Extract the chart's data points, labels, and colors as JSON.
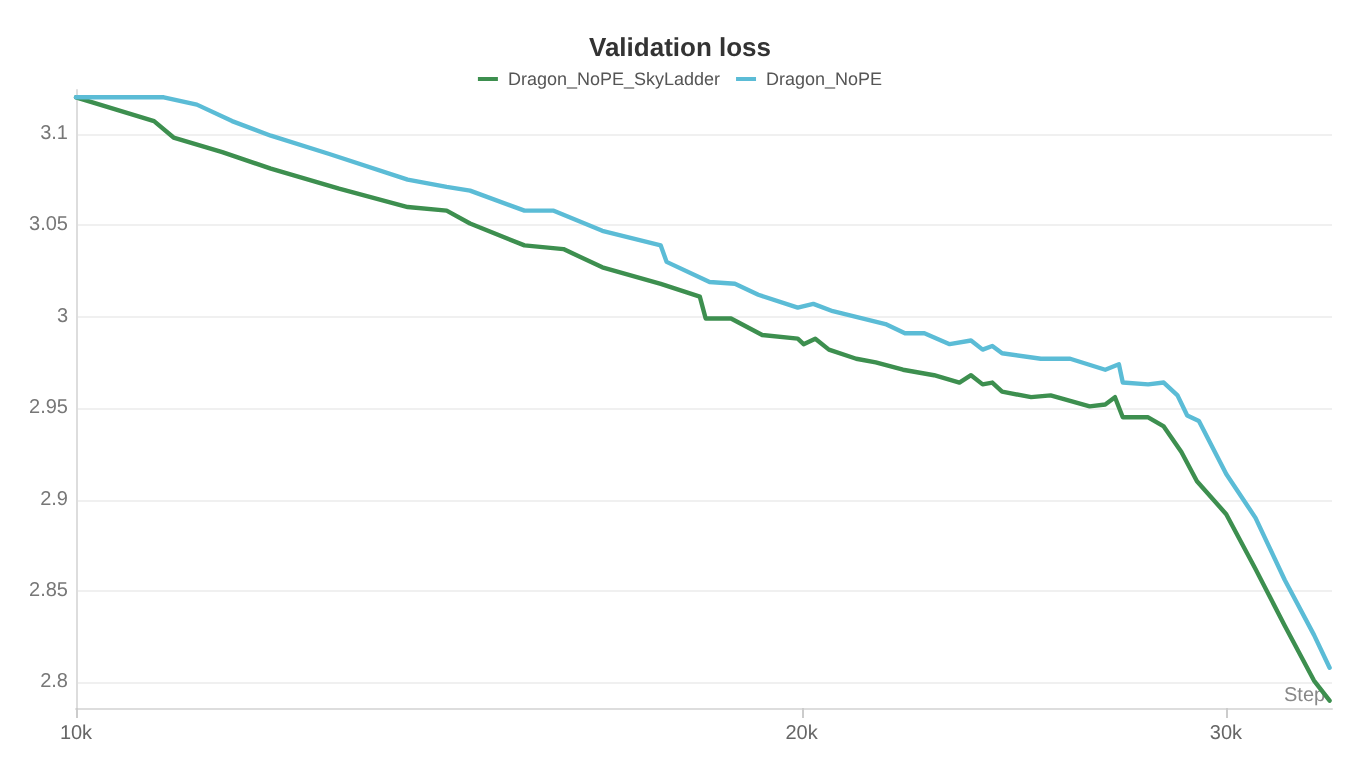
{
  "chart_data": {
    "type": "line",
    "title": "Validation loss",
    "xlabel": "Step",
    "log": "x",
    "grid": "y",
    "legend": "top",
    "line_style": "solid",
    "marker": "none",
    "xlim": [
      10000,
      33200
    ],
    "xticks": [
      {
        "value": 10000,
        "label": "10k"
      },
      {
        "value": 20000,
        "label": "20k"
      },
      {
        "value": 30000,
        "label": "30k"
      }
    ],
    "ylim": [
      2.786,
      3.124
    ],
    "yticks": [
      2.8,
      2.85,
      2.9,
      2.95,
      3,
      3.05,
      3.1
    ],
    "series": [
      {
        "name": "Dragon_NoPE_SkyLadder",
        "color": "#3d8f4f",
        "x": [
          10000,
          10774,
          10977,
          11500,
          12046,
          12857,
          13728,
          14249,
          14571,
          15349,
          15931,
          16534,
          17483,
          18148,
          18250,
          18697,
          19263,
          19928,
          20040,
          20265,
          20530,
          21073,
          21470,
          22036,
          22700,
          23257,
          23516,
          23778,
          23999,
          24224,
          24906,
          25374,
          26338,
          26733,
          26983,
          27185,
          27852,
          28270,
          28751,
          29181,
          30009,
          30860,
          31735,
          32633,
          33124
        ],
        "values": [
          3.12,
          3.107,
          3.098,
          3.09,
          3.081,
          3.07,
          3.06,
          3.058,
          3.051,
          3.039,
          3.037,
          3.027,
          3.018,
          3.011,
          2.999,
          2.999,
          2.99,
          2.988,
          2.985,
          2.988,
          2.982,
          2.977,
          2.975,
          2.971,
          2.968,
          2.964,
          2.968,
          2.963,
          2.964,
          2.959,
          2.956,
          2.957,
          2.951,
          2.952,
          2.956,
          2.945,
          2.945,
          2.94,
          2.926,
          2.91,
          2.892,
          2.862,
          2.831,
          2.801,
          2.79
        ]
      },
      {
        "name": "Dragon_NoPE",
        "color": "#5bbcd6",
        "x": [
          10000,
          10875,
          11224,
          11608,
          12046,
          12738,
          13728,
          14249,
          14571,
          15349,
          15784,
          16534,
          17483,
          17581,
          18318,
          18767,
          19191,
          19928,
          20227,
          20607,
          21670,
          22077,
          22491,
          23041,
          23516,
          23778,
          23999,
          24224,
          25139,
          25852,
          26733,
          27084,
          27185,
          27852,
          28270,
          28644,
          28911,
          29236,
          30009,
          30860,
          31735,
          32633,
          33124
        ],
        "values": [
          3.12,
          3.12,
          3.116,
          3.107,
          3.099,
          3.089,
          3.075,
          3.071,
          3.069,
          3.058,
          3.058,
          3.047,
          3.039,
          3.03,
          3.019,
          3.018,
          3.012,
          3.005,
          3.007,
          3.003,
          2.996,
          2.991,
          2.991,
          2.985,
          2.987,
          2.982,
          2.984,
          2.98,
          2.977,
          2.977,
          2.971,
          2.974,
          2.964,
          2.963,
          2.964,
          2.957,
          2.946,
          2.943,
          2.914,
          2.89,
          2.856,
          2.826,
          2.808
        ]
      }
    ]
  }
}
